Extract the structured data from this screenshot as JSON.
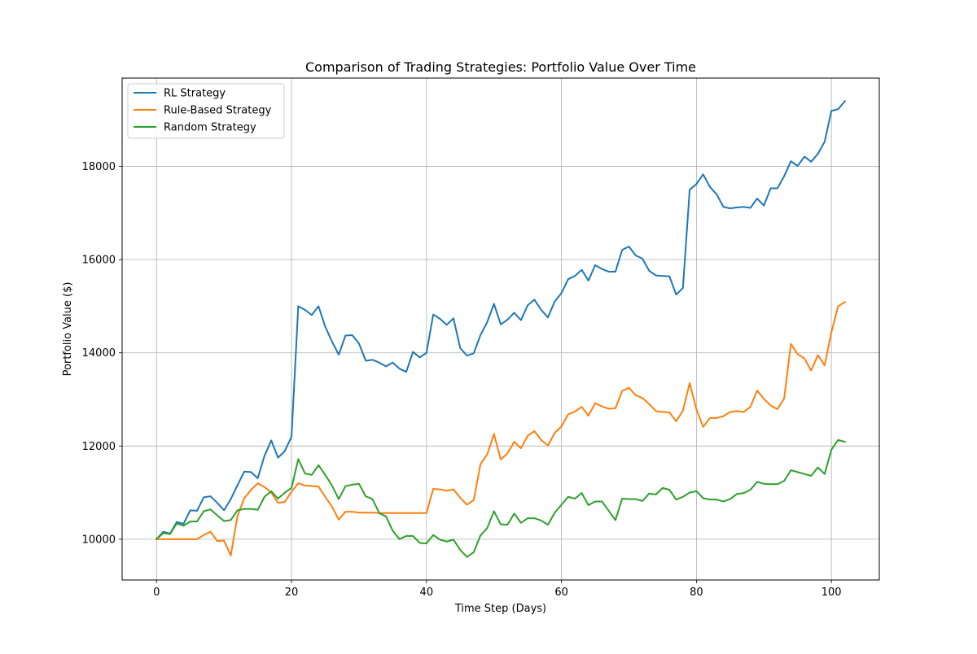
{
  "chart_data": {
    "type": "line",
    "title": "Comparison of Trading Strategies: Portfolio Value Over Time",
    "xlabel": "Time Step (Days)",
    "ylabel": "Portfolio Value ($)",
    "xlim": [
      -5.1,
      107.1
    ],
    "ylim": [
      9125,
      19895
    ],
    "xticks": [
      0,
      20,
      40,
      60,
      80,
      100
    ],
    "yticks": [
      10000,
      12000,
      14000,
      16000,
      18000
    ],
    "grid": true,
    "legend_position": "top-left",
    "series": [
      {
        "name": "RL Strategy",
        "color": "#1f77b4",
        "values": [
          10000,
          10160,
          10120,
          10370,
          10330,
          10620,
          10610,
          10900,
          10920,
          10780,
          10620,
          10860,
          11160,
          11450,
          11440,
          11310,
          11790,
          12120,
          11750,
          11890,
          12200,
          15000,
          14920,
          14810,
          15000,
          14560,
          14240,
          13960,
          14370,
          14380,
          14200,
          13830,
          13850,
          13790,
          13710,
          13790,
          13660,
          13590,
          14020,
          13900,
          14000,
          14820,
          14730,
          14600,
          14740,
          14100,
          13940,
          13990,
          14380,
          14660,
          15050,
          14610,
          14710,
          14860,
          14700,
          15020,
          15140,
          14920,
          14760,
          15100,
          15280,
          15580,
          15650,
          15780,
          15550,
          15880,
          15800,
          15740,
          15740,
          16210,
          16280,
          16090,
          16020,
          15760,
          15660,
          15650,
          15640,
          15250,
          15390,
          17500,
          17620,
          17830,
          17560,
          17400,
          17130,
          17100,
          17120,
          17130,
          17110,
          17310,
          17160,
          17530,
          17530,
          17790,
          18110,
          18010,
          18210,
          18100,
          18270,
          18530,
          19190,
          19230,
          19400
        ]
      },
      {
        "name": "Rule-Based Strategy",
        "color": "#ff7f0e",
        "values": [
          10000,
          10000,
          10000,
          10000,
          10000,
          10000,
          10000,
          10090,
          10160,
          9960,
          9970,
          9650,
          10500,
          10880,
          11060,
          11200,
          11120,
          11000,
          10780,
          10800,
          11020,
          11200,
          11150,
          11140,
          11130,
          10910,
          10700,
          10420,
          10590,
          10590,
          10570,
          10570,
          10570,
          10560,
          10560,
          10560,
          10560,
          10560,
          10560,
          10560,
          10560,
          11080,
          11070,
          11040,
          11070,
          10890,
          10740,
          10840,
          11610,
          11820,
          12260,
          11710,
          11840,
          12090,
          11950,
          12220,
          12320,
          12130,
          12010,
          12280,
          12420,
          12680,
          12740,
          12840,
          12650,
          12920,
          12850,
          12800,
          12810,
          13180,
          13250,
          13090,
          13030,
          12900,
          12750,
          12730,
          12720,
          12530,
          12760,
          13350,
          12790,
          12410,
          12600,
          12600,
          12640,
          12730,
          12750,
          12730,
          12840,
          13190,
          13010,
          12870,
          12790,
          13020,
          14190,
          13970,
          13880,
          13620,
          13950,
          13730,
          14440,
          15000,
          15090
        ]
      },
      {
        "name": "Random Strategy",
        "color": "#2ca02c",
        "values": [
          10000,
          10130,
          10110,
          10340,
          10290,
          10380,
          10380,
          10600,
          10640,
          10510,
          10390,
          10410,
          10620,
          10650,
          10650,
          10630,
          10910,
          11030,
          10870,
          11000,
          11100,
          11720,
          11410,
          11380,
          11590,
          11380,
          11150,
          10860,
          11140,
          11170,
          11190,
          10920,
          10860,
          10560,
          10490,
          10180,
          10000,
          10070,
          10070,
          9920,
          9910,
          10090,
          9990,
          9950,
          9990,
          9770,
          9620,
          9720,
          10080,
          10240,
          10600,
          10320,
          10310,
          10550,
          10350,
          10450,
          10450,
          10400,
          10310,
          10570,
          10740,
          10910,
          10870,
          10990,
          10730,
          10810,
          10810,
          10610,
          10410,
          10870,
          10860,
          10860,
          10820,
          10980,
          10960,
          11100,
          11060,
          10850,
          10910,
          11000,
          11030,
          10880,
          10850,
          10850,
          10810,
          10860,
          10970,
          10990,
          11060,
          11230,
          11190,
          11180,
          11180,
          11250,
          11480,
          11440,
          11400,
          11360,
          11540,
          11400,
          11920,
          12130,
          12090
        ]
      }
    ]
  }
}
